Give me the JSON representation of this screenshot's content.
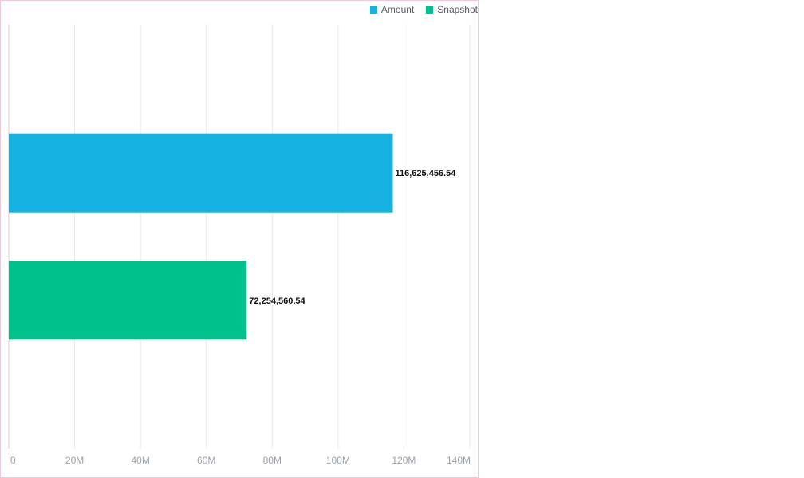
{
  "chart_data": {
    "type": "bar",
    "orientation": "horizontal",
    "categories": [
      "Amount",
      "Snapshot"
    ],
    "values": [
      116625456.54,
      72254560.54
    ],
    "data_labels": [
      "116,625,456.54",
      "72,254,560.54"
    ],
    "colors": [
      "#15b2e2",
      "#00c08b"
    ],
    "xlim": [
      0,
      140000000
    ],
    "x_ticks": [
      0,
      20000000,
      40000000,
      60000000,
      80000000,
      100000000,
      120000000,
      140000000
    ],
    "x_tick_labels": [
      "0",
      "20M",
      "40M",
      "60M",
      "80M",
      "100M",
      "120M",
      "140M"
    ],
    "grid": "vertical",
    "legend_position": "top-right",
    "legend": [
      {
        "label": "Amount",
        "color": "#15b2e2"
      },
      {
        "label": "Snapshot",
        "color": "#00c08b"
      }
    ]
  }
}
